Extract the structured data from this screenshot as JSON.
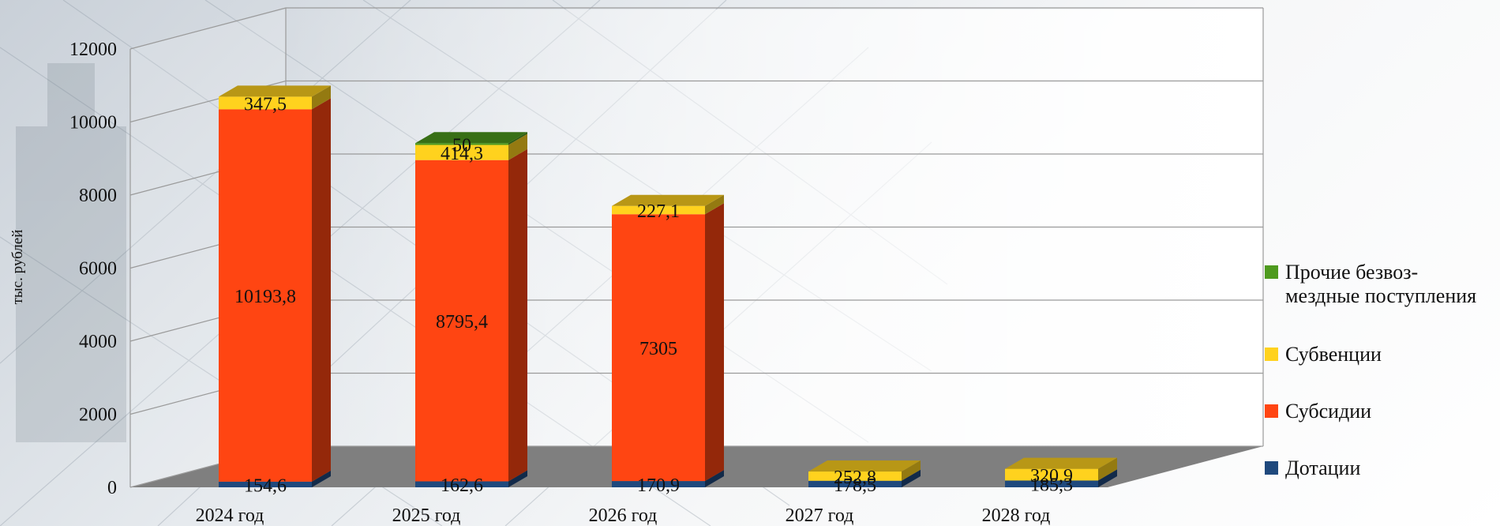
{
  "chart_data": {
    "type": "bar",
    "stacked": true,
    "three_d": true,
    "categories": [
      "2024 год",
      "2025 год",
      "2026 год",
      "2027 год",
      "2028 год"
    ],
    "series": [
      {
        "name": "Дотации",
        "color": "#1F497D",
        "values": [
          154.6,
          162.6,
          170.9,
          178.5,
          185.3
        ],
        "labels": [
          "154,6",
          "162,6",
          "170,9",
          "178,5",
          "185,3"
        ]
      },
      {
        "name": "Субсидии",
        "color": "#FF4512",
        "values": [
          10193.8,
          8795.4,
          7305,
          0,
          0
        ],
        "labels": [
          "10193,8",
          "8795,4",
          "7305",
          "",
          ""
        ]
      },
      {
        "name": "Субвенции",
        "color": "#FFD21E",
        "values": [
          347.5,
          414.3,
          227.1,
          252.8,
          320.9
        ],
        "labels": [
          "347,5",
          "414,3",
          "227,1",
          "252,8",
          "320,9"
        ]
      },
      {
        "name": "Прочие безвоз-\nмездные поступления",
        "color": "#4E9A1E",
        "values": [
          0,
          50,
          0,
          0,
          0
        ],
        "labels": [
          "",
          "50",
          "",
          "",
          ""
        ]
      }
    ],
    "ylabel": "тыс. рублей",
    "xlabel": "",
    "ylim": [
      0,
      12000
    ],
    "yticks": [
      0,
      2000,
      4000,
      6000,
      8000,
      10000,
      12000
    ],
    "grid": true,
    "legend_position": "right"
  }
}
